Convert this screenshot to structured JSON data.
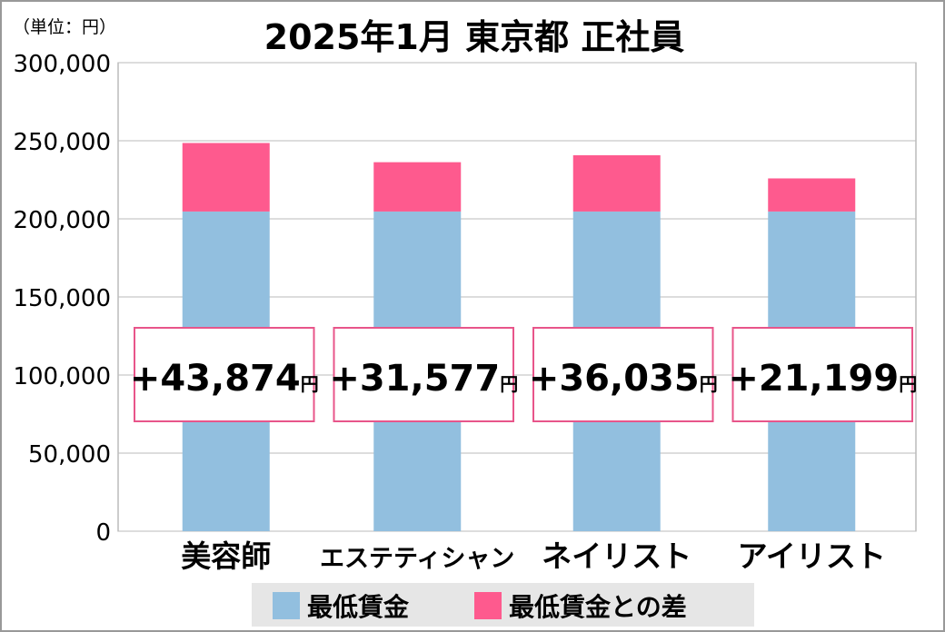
{
  "chart_data": {
    "type": "bar",
    "stacked": true,
    "title": "2025年1月 東京都 正社員",
    "unit_label": "（単位：円）",
    "categories": [
      "美容師",
      "エステティシャン",
      "ネイリスト",
      "アイリスト"
    ],
    "series": [
      {
        "name": "最低賃金",
        "values": [
          204688,
          204688,
          204688,
          204688
        ],
        "color": "#92bfdf"
      },
      {
        "name": "最低賃金との差",
        "values": [
          43874,
          31577,
          36035,
          21199
        ],
        "color": "#fe5a8e"
      }
    ],
    "data_labels": [
      "+43,874",
      "+31,577",
      "+36,035",
      "+21,199"
    ],
    "data_label_unit": "円",
    "ylim": [
      0,
      300000
    ],
    "yticks": [
      "0",
      "50,000",
      "100,000",
      "150,000",
      "200,000",
      "250,000",
      "300,000"
    ],
    "grid": true,
    "legend_position": "bottom"
  }
}
